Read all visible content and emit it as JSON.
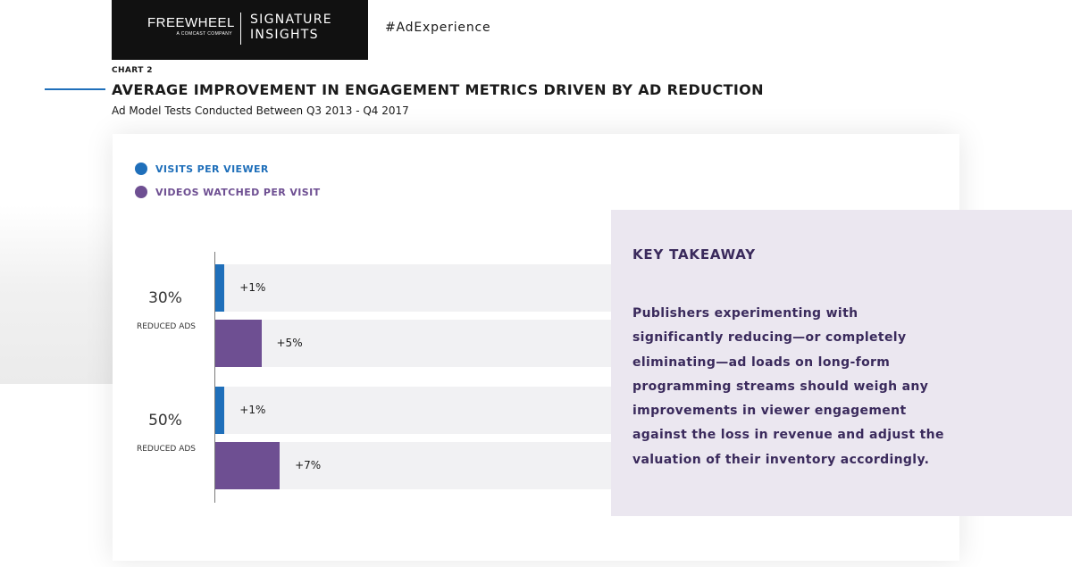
{
  "header": {
    "logo_main": "FREEWHEEL",
    "logo_sub": "A COMCAST COMPANY",
    "signature_line1": "SIGNATURE",
    "signature_line2": "INSIGHTS",
    "hashtag": "#AdExperience"
  },
  "colors": {
    "visits": "#1f6fba",
    "videos": "#6e4f92",
    "accent_line": "#1f6fba",
    "takeaway_bg": "#ebe7f0",
    "takeaway_text": "#3a2a5c"
  },
  "chart_data": {
    "type": "bar",
    "orientation": "horizontal",
    "chart_number": "CHART 2",
    "title": "AVERAGE IMPROVEMENT IN ENGAGEMENT METRICS DRIVEN BY AD REDUCTION",
    "subtitle": "Ad Model Tests Conducted Between Q3 2013 - Q4 2017",
    "legend_position": "top-left",
    "categories": [
      {
        "pct": "30%",
        "sub": "REDUCED ADS"
      },
      {
        "pct": "50%",
        "sub": "REDUCED ADS"
      }
    ],
    "series": [
      {
        "name": "VISITS PER VIEWER",
        "color": "#1f6fba",
        "values": [
          1,
          1
        ],
        "labels": [
          "+1%",
          "+1%"
        ]
      },
      {
        "name": "VIDEOS WATCHED PER VISIT",
        "color": "#6e4f92",
        "values": [
          5,
          7
        ],
        "labels": [
          "+5%",
          "+7%"
        ]
      }
    ],
    "unit": "%"
  },
  "takeaway": {
    "title": "KEY TAKEAWAY",
    "lines": [
      "Publishers experimenting with",
      "significantly reducing—or completely",
      "eliminating—ad loads on long-form",
      "programming streams should weigh any",
      "improvements in viewer engagement",
      "against the loss in revenue and adjust the",
      "valuation of their inventory accordingly."
    ]
  }
}
